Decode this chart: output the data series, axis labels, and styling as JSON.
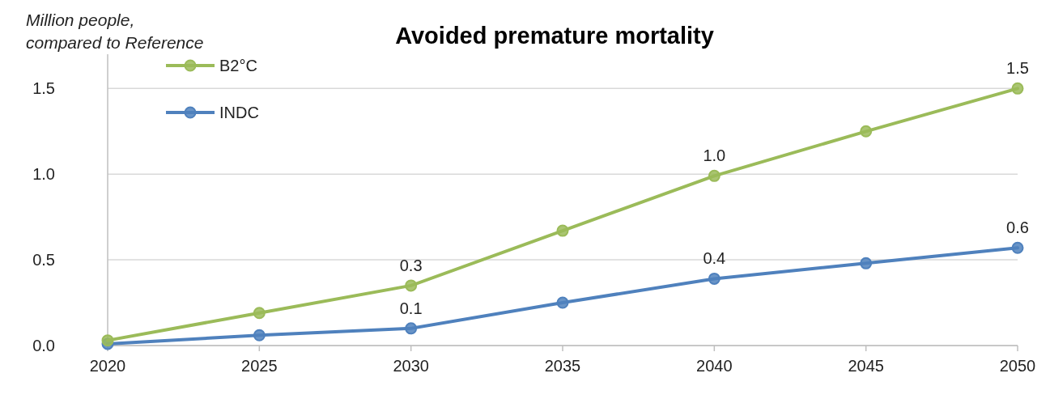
{
  "chart_data": {
    "type": "line",
    "title": "Avoided premature mortality",
    "ylabel": "Million people, compared to Reference",
    "x": [
      2020,
      2025,
      2030,
      2035,
      2040,
      2045,
      2050
    ],
    "series": [
      {
        "name": "B2°C",
        "color": "#9bbb59",
        "values": [
          0.03,
          0.19,
          0.35,
          0.67,
          0.99,
          1.25,
          1.5
        ],
        "value_labels": [
          null,
          null,
          "0.3",
          null,
          "1.0",
          null,
          "1.5"
        ]
      },
      {
        "name": "INDC",
        "color": "#4f81bd",
        "values": [
          0.01,
          0.06,
          0.1,
          0.25,
          0.39,
          0.48,
          0.57
        ],
        "value_labels": [
          null,
          null,
          "0.1",
          null,
          "0.4",
          null,
          "0.6"
        ]
      }
    ],
    "xlim": [
      2020,
      2050
    ],
    "xticks": [
      2020,
      2025,
      2030,
      2035,
      2040,
      2045,
      2050
    ],
    "ylim": [
      0,
      1.7
    ],
    "yticks": [
      {
        "value": 0,
        "label": "0.0"
      },
      {
        "value": 0.5,
        "label": "0.5"
      },
      {
        "value": 1,
        "label": "1.0"
      },
      {
        "value": 1.5,
        "label": "1.5"
      }
    ],
    "grid": "y",
    "legend": "top left",
    "marker": "circle",
    "line_style": "solid"
  }
}
